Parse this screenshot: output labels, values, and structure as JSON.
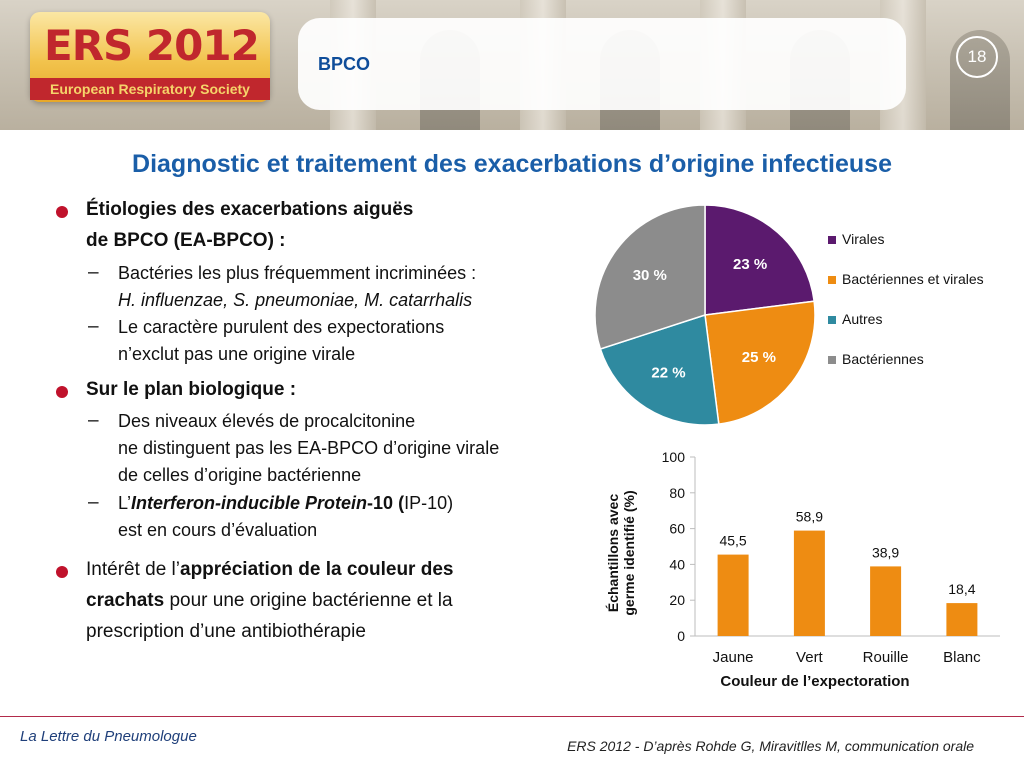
{
  "header": {
    "logo_title": "ERS 2012",
    "logo_subtitle": "European Respiratory Society",
    "section": "BPCO",
    "page_number": "18"
  },
  "title": "Diagnostic et traitement des exacerbations d’origine infectieuse",
  "content": {
    "b1_line1": "Étiologies des exacerbations aiguës",
    "b1_line2": "de BPCO (EA-BPCO) :",
    "b1_s1_line1": "Bactéries les plus fréquemment incriminées :",
    "b1_s1_line2": "H. influenzae, S. pneumoniae, M. catarrhalis",
    "b1_s2_line1": "Le caractère purulent des expectorations",
    "b1_s2_line2": "n’exclut pas une origine virale",
    "b2_line1": "Sur le plan biologique :",
    "b2_s1_line1": "Des niveaux élevés de procalcitonine",
    "b2_s1_line2": "ne distinguent pas les EA-BPCO d’origine virale",
    "b2_s1_line3": "de celles d’origine bactérienne",
    "b2_s2_pre": "L’",
    "b2_s2_em": "Interferon-inducible Protein",
    "b2_s2_bold": "-10 (",
    "b2_s2_post": "IP-10)",
    "b2_s2_line2": "est en cours d’évaluation",
    "b3_pre": "Intérêt de l’",
    "b3_bold1": "appréciation de la couleur des",
    "b3_bold2": "crachats",
    "b3_rest": " pour une origine bactérienne et la",
    "b3_line3": "prescription d’une antibiothérapie"
  },
  "colors": {
    "virales": "#5b1a6e",
    "bacteriennes_virales": "#ee8c12",
    "autres": "#2f8aa0",
    "bacteriennes": "#8c8c8c",
    "bar": "#ee8c12",
    "title": "#1a5ea8",
    "bullet": "#c0122c"
  },
  "chart_data": [
    {
      "type": "pie",
      "slices": [
        {
          "name": "Virales",
          "value": 23,
          "label": "23 %",
          "color": "#5b1a6e"
        },
        {
          "name": "Bactériennes et virales",
          "value": 25,
          "label": "25 %",
          "color": "#ee8c12"
        },
        {
          "name": "Autres",
          "value": 22,
          "label": "22 %",
          "color": "#2f8aa0"
        },
        {
          "name": "Bactériennes",
          "value": 30,
          "label": "30 %",
          "color": "#8c8c8c"
        }
      ],
      "legend_position": "right"
    },
    {
      "type": "bar",
      "categories": [
        "Jaune",
        "Vert",
        "Rouille",
        "Blanc"
      ],
      "values": [
        45.5,
        58.9,
        38.9,
        18.4
      ],
      "value_labels": [
        "45,5",
        "58,9",
        "38,9",
        "18,4"
      ],
      "ylabel_line1": "Échantillons avec",
      "ylabel_line2": "germe identifié (%)",
      "xlabel": "Couleur de l’expectoration",
      "ylim": [
        0,
        100
      ],
      "yticks": [
        0,
        20,
        40,
        60,
        80,
        100
      ],
      "grid": false
    }
  ],
  "footer": {
    "left": "La Lettre du Pneumologue",
    "right": "ERS 2012 - D’après Rohde G,  Miravitlles M, communication orale"
  }
}
